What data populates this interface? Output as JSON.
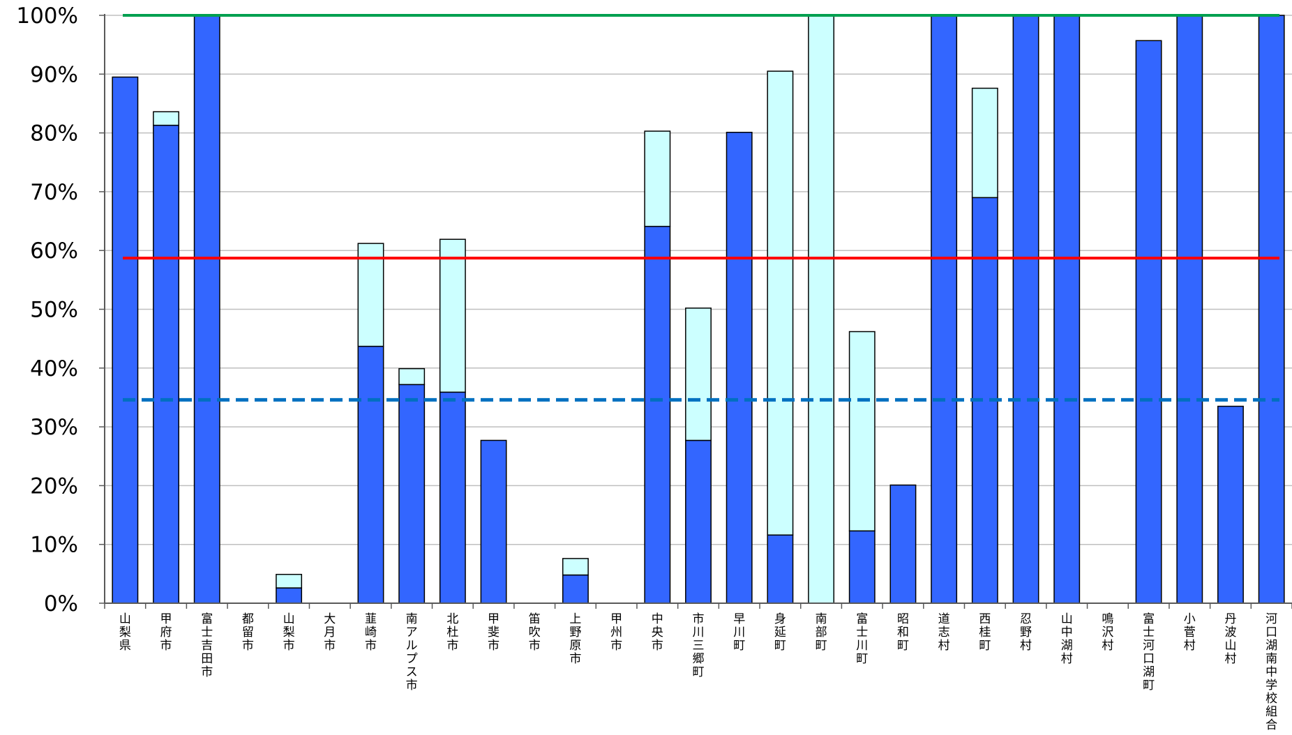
{
  "chart_data": {
    "type": "bar",
    "stacked": true,
    "title": "",
    "xlabel": "",
    "ylabel": "",
    "ylim": [
      0,
      100
    ],
    "y_ticks": [
      "0%",
      "10%",
      "20%",
      "30%",
      "40%",
      "50%",
      "60%",
      "70%",
      "80%",
      "90%",
      "100%"
    ],
    "grid": true,
    "legend": "none",
    "categories": [
      "山梨県",
      "甲府市",
      "富士吉田市",
      "都留市",
      "山梨市",
      "大月市",
      "韮崎市",
      "南アルプス市",
      "北杜市",
      "甲斐市",
      "笛吹市",
      "上野原市",
      "甲州市",
      "中央市",
      "市川三郷町",
      "早川町",
      "身延町",
      "南部町",
      "富士川町",
      "昭和町",
      "道志村",
      "西桂町",
      "忍野村",
      "山中湖村",
      "鳴沢村",
      "富士河口湖町",
      "小菅村",
      "丹波山村",
      "河口湖南中学校組合"
    ],
    "series": [
      {
        "color": "#3366FF",
        "values": [
          89.5,
          81.3,
          100,
          0,
          2.6,
          0,
          43.7,
          37.2,
          35.9,
          27.7,
          0,
          4.8,
          0,
          64.1,
          27.7,
          80.1,
          11.6,
          0,
          12.3,
          20.1,
          100,
          69.0,
          100,
          100,
          0,
          95.7,
          100,
          33.5,
          100
        ]
      },
      {
        "color": "#CCFFFF",
        "values": [
          0,
          2.3,
          0,
          0,
          2.3,
          0,
          17.5,
          2.7,
          26.0,
          0,
          0,
          2.8,
          0,
          16.2,
          22.5,
          0,
          78.9,
          100,
          33.9,
          0,
          0,
          18.6,
          0,
          0,
          0,
          0,
          0,
          0,
          0
        ]
      }
    ],
    "reference_lines": [
      {
        "value": 100,
        "color": "#00A050",
        "style": "solid"
      },
      {
        "value": 58.7,
        "color": "#FF0000",
        "style": "solid"
      },
      {
        "value": 34.6,
        "color": "#0070C0",
        "style": "dashed"
      }
    ]
  }
}
